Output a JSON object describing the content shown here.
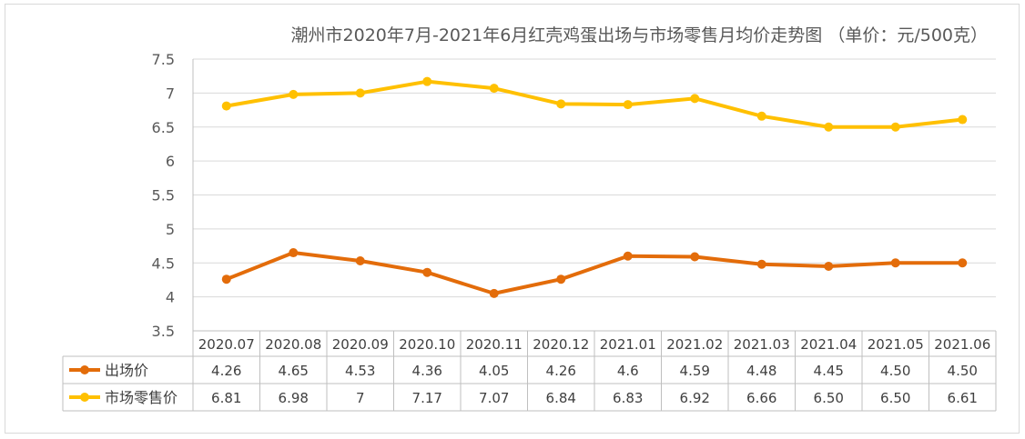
{
  "chart_data": {
    "type": "line",
    "title": "潮州市2020年7月-2021年6月红壳鸡蛋出场与市场零售月均价走势图 （单价：元/500克）",
    "categories": [
      "2020.07",
      "2020.08",
      "2020.09",
      "2020.10",
      "2020.11",
      "2020.12",
      "2021.01",
      "2021.02",
      "2021.03",
      "2021.04",
      "2021.05",
      "2021.06"
    ],
    "y_ticks": [
      "3.5",
      "4",
      "4.5",
      "5",
      "5.5",
      "6",
      "6.5",
      "7",
      "7.5"
    ],
    "ylim": [
      3.5,
      7.5
    ],
    "grid": true,
    "legend_placement": "data-table",
    "series": [
      {
        "name": "出场价",
        "color": "#e36c0a",
        "values": [
          4.26,
          4.65,
          4.53,
          4.36,
          4.05,
          4.26,
          4.6,
          4.59,
          4.48,
          4.45,
          4.5,
          4.5
        ],
        "labels": [
          "4.26",
          "4.65",
          "4.53",
          "4.36",
          "4.05",
          "4.26",
          "4.6",
          "4.59",
          "4.48",
          "4.45",
          "4.50",
          "4.50"
        ]
      },
      {
        "name": "市场零售价",
        "color": "#ffc000",
        "values": [
          6.81,
          6.98,
          7,
          7.17,
          7.07,
          6.84,
          6.83,
          6.92,
          6.66,
          6.5,
          6.5,
          6.61
        ],
        "labels": [
          "6.81",
          "6.98",
          "7",
          "7.17",
          "7.07",
          "6.84",
          "6.83",
          "6.92",
          "6.66",
          "6.50",
          "6.50",
          "6.61"
        ]
      }
    ]
  }
}
